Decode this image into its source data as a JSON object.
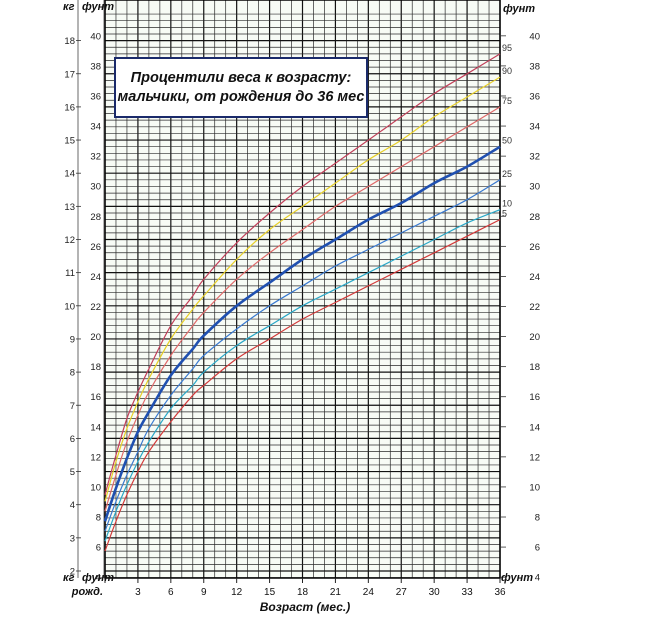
{
  "chart_data": {
    "type": "line",
    "title": "Процентили веса к возрасту:",
    "subtitle": "мальчики, от рождения до 36 мес",
    "xlabel": "Возраст (мес.)",
    "x_tick_labels": [
      "рожд.",
      "3",
      "6",
      "9",
      "12",
      "15",
      "18",
      "21",
      "24",
      "27",
      "30",
      "33",
      "36"
    ],
    "x_tick_values": [
      0,
      3,
      6,
      9,
      12,
      15,
      18,
      21,
      24,
      27,
      30,
      33,
      36
    ],
    "xlim": [
      0,
      36
    ],
    "unit_labels": {
      "kg_top_left": "кг",
      "lb_top_left": "фунт",
      "lb_top_right": "фунт",
      "kg_bottom_left": "кг",
      "lb_bottom_left": "фунт",
      "lb_bottom_right": "фунт"
    },
    "y_kg": {
      "label": "кг",
      "ticks": [
        2,
        3,
        4,
        5,
        6,
        7,
        8,
        9,
        10,
        11,
        12,
        13,
        14,
        15,
        16,
        17,
        18
      ],
      "ylim": [
        1.8,
        18.8
      ]
    },
    "y_lb": {
      "label": "фунт",
      "ticks": [
        4,
        6,
        8,
        10,
        12,
        14,
        16,
        18,
        20,
        22,
        24,
        26,
        28,
        30,
        32,
        34,
        36,
        38,
        40
      ]
    },
    "grid": true,
    "x": [
      0,
      1,
      2,
      3,
      4,
      6,
      8,
      9,
      12,
      15,
      18,
      21,
      24,
      27,
      30,
      33,
      36
    ],
    "series": [
      {
        "name": "5",
        "color": "#d23a3a",
        "values": [
          2.6,
          3.5,
          4.3,
          5.0,
          5.6,
          6.5,
          7.3,
          7.6,
          8.4,
          9.0,
          9.6,
          10.1,
          10.6,
          11.1,
          11.6,
          12.1,
          12.6
        ]
      },
      {
        "name": "10",
        "color": "#2aa8c8",
        "values": [
          2.9,
          3.8,
          4.6,
          5.3,
          5.9,
          6.9,
          7.6,
          8.0,
          8.8,
          9.4,
          10.0,
          10.5,
          11.0,
          11.5,
          12.0,
          12.5,
          12.9
        ]
      },
      {
        "name": "25",
        "color": "#3a7ad0",
        "values": [
          3.2,
          4.1,
          4.9,
          5.6,
          6.3,
          7.3,
          8.1,
          8.5,
          9.3,
          10.0,
          10.6,
          11.2,
          11.7,
          12.2,
          12.7,
          13.2,
          13.8
        ]
      },
      {
        "name": "50",
        "color": "#1f50b0",
        "values": [
          3.5,
          4.5,
          5.4,
          6.2,
          6.8,
          7.9,
          8.7,
          9.1,
          10.0,
          10.7,
          11.4,
          12.0,
          12.6,
          13.1,
          13.7,
          14.2,
          14.8
        ]
      },
      {
        "name": "75",
        "color": "#e06a6a",
        "values": [
          3.8,
          4.9,
          5.9,
          6.7,
          7.4,
          8.5,
          9.4,
          9.8,
          10.8,
          11.6,
          12.3,
          13.0,
          13.6,
          14.2,
          14.8,
          15.4,
          16.0
        ]
      },
      {
        "name": "90",
        "color": "#e8d028",
        "values": [
          4.1,
          5.3,
          6.3,
          7.1,
          7.8,
          9.0,
          9.9,
          10.3,
          11.4,
          12.3,
          13.0,
          13.7,
          14.4,
          15.0,
          15.7,
          16.3,
          16.9
        ]
      },
      {
        "name": "95",
        "color": "#c2405a",
        "values": [
          4.3,
          5.5,
          6.6,
          7.4,
          8.1,
          9.4,
          10.3,
          10.8,
          11.9,
          12.8,
          13.6,
          14.3,
          15.0,
          15.7,
          16.4,
          17.0,
          17.6
        ]
      }
    ],
    "series_label_text": {
      "5": "5",
      "10": "10",
      "25": "25",
      "50": "50",
      "75": "75",
      "90": "90",
      "95": "95"
    }
  }
}
